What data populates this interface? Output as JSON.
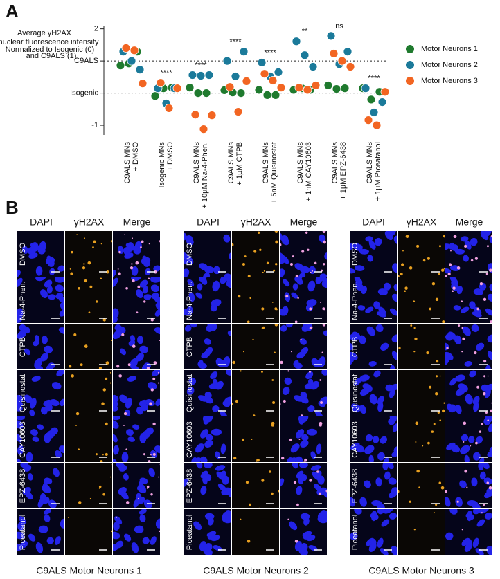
{
  "chart_data": {
    "type": "strip",
    "panel_label": "A",
    "y_label": [
      "Average γH2AX",
      "nuclear fluorescence intensity",
      "Normalized to Isogenic (0)",
      "and C9ALS (1)"
    ],
    "categories": [
      [
        "C9ALS MNs",
        "+ DMSO"
      ],
      [
        "Isogenic MNs",
        "+ DMSO"
      ],
      [
        "C9ALS MNs",
        "+ 10µM Na-4-Phen."
      ],
      [
        "C9ALS MNs",
        "+ 1µM CTPB"
      ],
      [
        "C9ALS MNs",
        "+ 5nM Quisinostat"
      ],
      [
        "C9ALS MNs",
        "+ 1nM CAY10603"
      ],
      [
        "C9ALS MNs",
        "+ 1µM EPZ-6438"
      ],
      [
        "C9ALS MNs",
        "+ 1µM Piceatanol"
      ]
    ],
    "annotations": [
      null,
      "****",
      "****",
      "****",
      "****",
      "**",
      "ns",
      "****"
    ],
    "series": [
      {
        "name": "Motor Neurons 1",
        "color": "#1f7a2e",
        "values": [
          [
            0.86,
            0.92,
            1.29
          ],
          [
            -0.09,
            0.15,
            0.17
          ],
          [
            0.17,
            0.0,
            0.0
          ],
          [
            0.09,
            0.02,
            0.0
          ],
          [
            0.1,
            -0.06,
            -0.06
          ],
          [
            0.1,
            0.15,
            0.1
          ],
          [
            0.24,
            0.13,
            0.15
          ],
          [
            0.15,
            -0.2,
            0.04
          ]
        ]
      },
      {
        "name": "Motor Neurons 2",
        "color": "#1b7a9a",
        "values": [
          [
            1.29,
            1.0,
            0.73
          ],
          [
            0.15,
            -0.32,
            0.15
          ],
          [
            0.56,
            0.54,
            0.56
          ],
          [
            1.0,
            0.52,
            1.29
          ],
          [
            0.95,
            0.52,
            0.65
          ],
          [
            1.61,
            1.18,
            0.82
          ],
          [
            1.78,
            0.9,
            1.29
          ],
          [
            0.15,
            -0.6,
            -0.28
          ]
        ]
      },
      {
        "name": "Motor Neurons 3",
        "color": "#f26522",
        "values": [
          [
            1.4,
            1.33,
            0.3
          ],
          [
            0.32,
            -0.47,
            0.15
          ],
          [
            -0.67,
            -1.12,
            -0.69
          ],
          [
            0.19,
            -0.58,
            0.37
          ],
          [
            0.6,
            0.39,
            0.17
          ],
          [
            0.17,
            0.1,
            0.24
          ],
          [
            1.23,
            1.0,
            0.82
          ],
          [
            -0.84,
            -1.0,
            0.04
          ]
        ]
      }
    ],
    "ylim": [
      -1.3,
      2.1
    ],
    "yticks": [
      2,
      {
        "value": 1,
        "label": "C9ALS"
      },
      {
        "value": 0,
        "label": "Isogenic"
      },
      -1
    ],
    "hlines": [
      1,
      0
    ],
    "legend": "right"
  },
  "panel_b": {
    "panel_label": "B",
    "columns": [
      "DAPI",
      "γH2AX",
      "Merge"
    ],
    "rows": [
      "DMSO",
      "Na-4-Phen.",
      "CTPB",
      "Quisinostat",
      "CAY10603",
      "EPZ-6438",
      "Piceatanol"
    ],
    "captions": [
      "C9ALS Motor Neurons 1",
      "C9ALS Motor Neurons 2",
      "C9ALS Motor Neurons 3"
    ]
  }
}
